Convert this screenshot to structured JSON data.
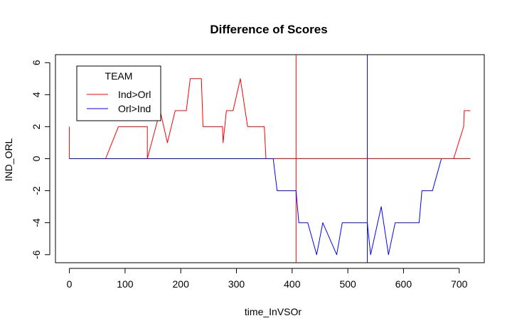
{
  "chart_data": {
    "type": "line",
    "title": "Difference of Scores",
    "xlabel": "time_InVSOr",
    "ylabel": "IND_ORL",
    "xlim": [
      -25,
      745
    ],
    "ylim": [
      -6.5,
      6.5
    ],
    "xticks": [
      0,
      100,
      200,
      300,
      400,
      500,
      600,
      700
    ],
    "yticks": [
      -6,
      -4,
      -2,
      0,
      2,
      4,
      6
    ],
    "xtick_labels": [
      "0",
      "100",
      "200",
      "300",
      "400",
      "500",
      "600",
      "700"
    ],
    "ytick_labels": [
      "-6",
      "-4",
      "-2",
      "0",
      "2",
      "4",
      "6"
    ],
    "grid": false,
    "legend": {
      "title": "TEAM",
      "position": "top-left"
    },
    "series": [
      {
        "name": "Ind>Orl",
        "color": "#ff0000",
        "x": [
          0,
          0,
          65,
          88,
          140,
          140,
          163,
          176,
          190,
          210,
          217,
          237,
          240,
          275,
          276,
          282,
          294,
          307,
          320,
          350,
          353,
          405,
          720
        ],
        "y": [
          2,
          0,
          0,
          2,
          2,
          0,
          3,
          1,
          3,
          3,
          5,
          5,
          2,
          2,
          1,
          3,
          3,
          5,
          2,
          2,
          0,
          0,
          0
        ]
      },
      {
        "name": "Orl>Ind",
        "color": "#0000ff",
        "x": [
          0,
          350,
          366,
          373,
          400,
          407,
          412,
          428,
          444,
          455,
          480,
          490,
          530,
          535,
          541,
          560,
          573,
          585,
          628,
          633,
          652,
          668,
          676,
          720
        ],
        "y": [
          0,
          0,
          0,
          -2,
          -2,
          -2,
          -4,
          -4,
          -6,
          -4,
          -6,
          -4,
          -4,
          -4,
          -6,
          -3,
          -6,
          -4,
          -4,
          -2,
          -2,
          0,
          0,
          0
        ]
      },
      {
        "name": "",
        "color": "#ff0000",
        "x": [
          405,
          720
        ],
        "y": [
          0,
          0
        ]
      },
      {
        "name": "",
        "color": "#ff0000",
        "x": [
          676,
          690,
          708,
          709,
          720
        ],
        "y": [
          0,
          0,
          2,
          3,
          3
        ]
      }
    ],
    "vlines": [
      {
        "x": 407,
        "color": "#ff0000"
      },
      {
        "x": 535,
        "color": "#0000ff"
      }
    ]
  }
}
